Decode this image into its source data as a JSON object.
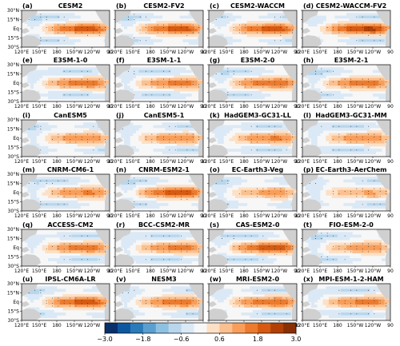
{
  "chart_data": {
    "type": "heatmap",
    "description_units": "colorbar",
    "colorbar": {
      "ticks": [
        -3.0,
        -1.8,
        -0.6,
        0.6,
        1.8,
        3.0
      ],
      "tick_labels": [
        "−3.0",
        "−1.8",
        "−0.6",
        "0.6",
        "1.8",
        "3.0"
      ],
      "levels": [
        -3.0,
        -2.6,
        -2.2,
        -1.8,
        -1.4,
        -1.0,
        -0.6,
        -0.2,
        0.2,
        0.6,
        1.0,
        1.4,
        1.8,
        2.2,
        2.6,
        3.0
      ],
      "colors": [
        "#08306b",
        "#0d57a1",
        "#2b7bba",
        "#5a9fd0",
        "#8dc1e1",
        "#b8d7ec",
        "#dbe9f6",
        "#f7f7f7",
        "#fde0c5",
        "#fbc08f",
        "#f89e5a",
        "#ec7b2e",
        "#d65a12",
        "#b24005",
        "#8a2f03"
      ]
    },
    "x_axis": {
      "tick_labels": [
        "120°E",
        "150°E",
        "180",
        "150°W",
        "120°W",
        "90"
      ]
    },
    "y_axis": {
      "tick_labels": [
        "30°N",
        "15°N",
        "Eq",
        "15°S",
        "30°S"
      ]
    },
    "grid": false,
    "panels": [
      {
        "label": "(a)",
        "title": "CESM2",
        "peak": 1.9
      },
      {
        "label": "(b)",
        "title": "CESM2-FV2",
        "peak": 1.9
      },
      {
        "label": "(c)",
        "title": "CESM2-WACCM",
        "peak": 1.9
      },
      {
        "label": "(d)",
        "title": "CESM2-WACCM-FV2",
        "peak": 2.2
      },
      {
        "label": "(e)",
        "title": "E3SM-1-0",
        "peak": 1.6
      },
      {
        "label": "(f)",
        "title": "E3SM-1-1",
        "peak": 1.5
      },
      {
        "label": "(g)",
        "title": "E3SM-2-0",
        "peak": 1.7
      },
      {
        "label": "(h)",
        "title": "E3SM-2-1",
        "peak": 1.6
      },
      {
        "label": "(i)",
        "title": "CanESM5",
        "peak": 1.3
      },
      {
        "label": "(j)",
        "title": "CanESM5-1",
        "peak": 1.3
      },
      {
        "label": "(k)",
        "title": "HadGEM3-GC31-LL",
        "peak": 1.4
      },
      {
        "label": "(l)",
        "title": "HadGEM3-GC31-MM",
        "peak": 1.3
      },
      {
        "label": "(m)",
        "title": "CNRM-CM6-1",
        "peak": 1.4
      },
      {
        "label": "(n)",
        "title": "CNRM-ESM2-1",
        "peak": 2.0
      },
      {
        "label": "(o)",
        "title": "EC-Earth3-Veg",
        "peak": 1.1
      },
      {
        "label": "(p)",
        "title": "EC-Earth3-AerChem",
        "peak": 1.0
      },
      {
        "label": "(q)",
        "title": "ACCESS-CM2",
        "peak": 1.6
      },
      {
        "label": "(r)",
        "title": "BCC-CSM2-MR",
        "peak": 1.5
      },
      {
        "label": "(s)",
        "title": "CAS-ESM2-0",
        "peak": 2.0
      },
      {
        "label": "(t)",
        "title": "FIO-ESM-2-0",
        "peak": 1.2
      },
      {
        "label": "(u)",
        "title": "IPSL-CM6A-LR",
        "peak": 1.9
      },
      {
        "label": "(v)",
        "title": "NESM3",
        "peak": 1.6
      },
      {
        "label": "(w)",
        "title": "MRI-ESM2-0",
        "peak": 1.7
      },
      {
        "label": "(x)",
        "title": "MPI-ESM-1-2-HAM",
        "peak": 1.5
      }
    ]
  }
}
